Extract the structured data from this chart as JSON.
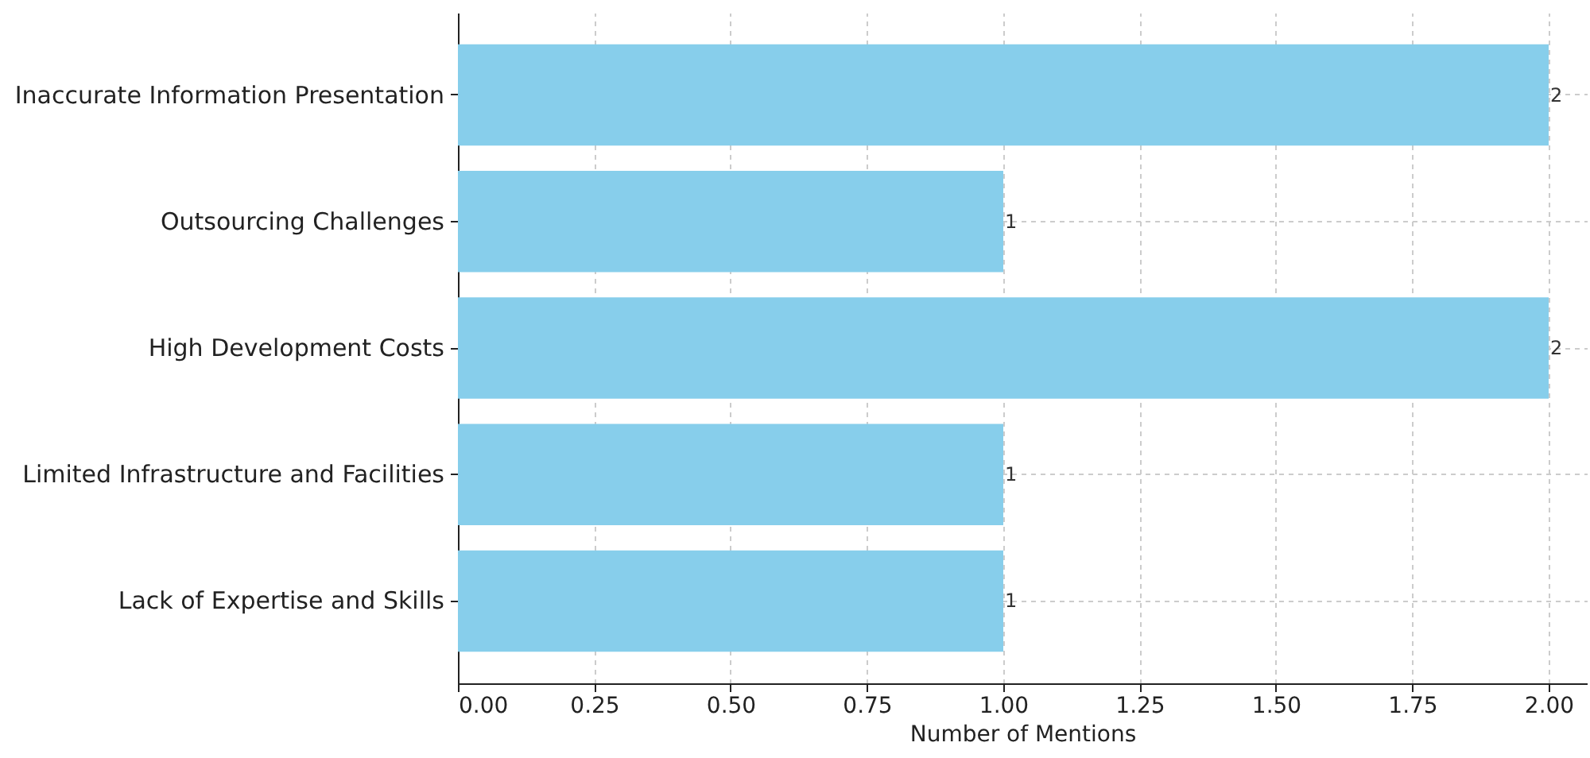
{
  "chart_data": {
    "type": "bar",
    "orientation": "horizontal",
    "xlabel": "Number of Mentions",
    "categories": [
      "Inaccurate Information Presentation",
      "Outsourcing Challenges",
      "High Development Costs",
      "Limited Infrastructure and Facilities",
      "Lack of Expertise and Skills"
    ],
    "values": [
      2,
      1,
      2,
      1,
      1
    ],
    "color": "#87ceeb",
    "xlim": [
      0,
      2.07
    ],
    "xticks": [
      {
        "value": 0,
        "label": "0.00"
      },
      {
        "value": 0.25,
        "label": "0.25"
      },
      {
        "value": 0.5,
        "label": "0.50"
      },
      {
        "value": 0.75,
        "label": "0.75"
      },
      {
        "value": 1,
        "label": "1.00"
      },
      {
        "value": 1.25,
        "label": "1.25"
      },
      {
        "value": 1.5,
        "label": "1.50"
      },
      {
        "value": 1.75,
        "label": "1.75"
      },
      {
        "value": 2,
        "label": "2.00"
      }
    ],
    "grid": true,
    "data_labels": true
  }
}
